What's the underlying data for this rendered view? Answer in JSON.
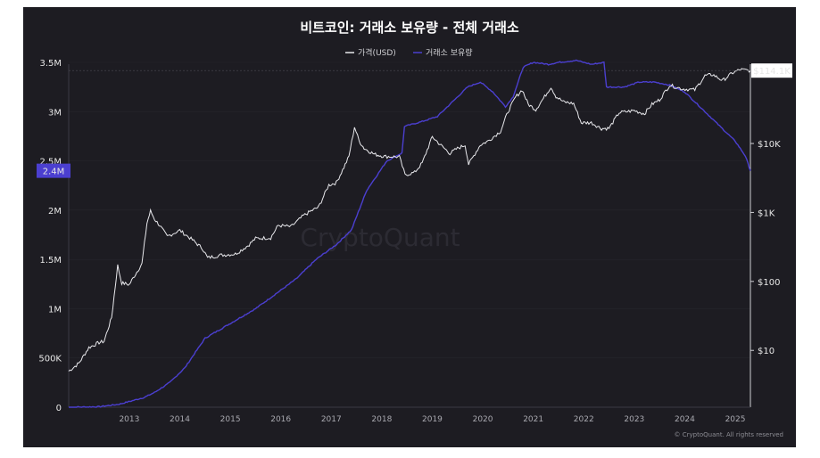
{
  "chart_data": {
    "type": "line",
    "title": "비트코인: 거래소 보유량 - 전체 거래소",
    "legend_position": "top-center",
    "watermark": "CryptoQuant",
    "copyright": "© CryptoQuant. All rights reserved",
    "x_ticks": [
      "2013",
      "2014",
      "2015",
      "2016",
      "2017",
      "2018",
      "2019",
      "2020",
      "2021",
      "2022",
      "2023",
      "2024",
      "2025"
    ],
    "x_range": [
      2012.3,
      2025.8
    ],
    "left_axis": {
      "ticks": [
        "0",
        "500K",
        "1M",
        "1.5M",
        "2M",
        "2.5M",
        "3M",
        "3.5M"
      ],
      "tick_values": [
        0,
        500000,
        1000000,
        1500000,
        2000000,
        2500000,
        3000000,
        3500000
      ],
      "range": [
        0,
        3500000
      ],
      "current_label": "2.4M",
      "current_value": 2400000
    },
    "right_axis": {
      "scale": "log",
      "ticks": [
        "$10",
        "$100",
        "$1K",
        "$10K"
      ],
      "tick_values": [
        10,
        100,
        1000,
        10000
      ],
      "range": [
        1.5,
        150000
      ],
      "current_label": "$114.1K",
      "current_value": 114100
    },
    "series": [
      {
        "name": "가격(USD)",
        "color": "#e8e8ec",
        "axis": "right",
        "points": [
          [
            2012.3,
            5
          ],
          [
            2012.5,
            6.5
          ],
          [
            2012.7,
            11
          ],
          [
            2012.9,
            13
          ],
          [
            2013.0,
            13.5
          ],
          [
            2013.15,
            30
          ],
          [
            2013.27,
            170
          ],
          [
            2013.35,
            95
          ],
          [
            2013.5,
            90
          ],
          [
            2013.6,
            120
          ],
          [
            2013.75,
            180
          ],
          [
            2013.85,
            700
          ],
          [
            2013.92,
            1050
          ],
          [
            2014.0,
            800
          ],
          [
            2014.1,
            650
          ],
          [
            2014.25,
            450
          ],
          [
            2014.5,
            550
          ],
          [
            2014.75,
            400
          ],
          [
            2014.95,
            300
          ],
          [
            2015.05,
            220
          ],
          [
            2015.3,
            240
          ],
          [
            2015.6,
            250
          ],
          [
            2015.85,
            330
          ],
          [
            2016.0,
            420
          ],
          [
            2016.3,
            430
          ],
          [
            2016.45,
            650
          ],
          [
            2016.7,
            620
          ],
          [
            2016.95,
            900
          ],
          [
            2017.1,
            1050
          ],
          [
            2017.25,
            1200
          ],
          [
            2017.45,
            2500
          ],
          [
            2017.6,
            2700
          ],
          [
            2017.75,
            4500
          ],
          [
            2017.85,
            6500
          ],
          [
            2017.96,
            17500
          ],
          [
            2018.05,
            11000
          ],
          [
            2018.15,
            8500
          ],
          [
            2018.35,
            7000
          ],
          [
            2018.55,
            6500
          ],
          [
            2018.85,
            6400
          ],
          [
            2018.96,
            3500
          ],
          [
            2019.15,
            3800
          ],
          [
            2019.3,
            5200
          ],
          [
            2019.5,
            12500
          ],
          [
            2019.7,
            9000
          ],
          [
            2019.85,
            7200
          ],
          [
            2020.0,
            8500
          ],
          [
            2020.15,
            9500
          ],
          [
            2020.22,
            5000
          ],
          [
            2020.45,
            9500
          ],
          [
            2020.6,
            10800
          ],
          [
            2020.85,
            15000
          ],
          [
            2021.0,
            29000
          ],
          [
            2021.15,
            47000
          ],
          [
            2021.28,
            60000
          ],
          [
            2021.4,
            37000
          ],
          [
            2021.55,
            31000
          ],
          [
            2021.7,
            45000
          ],
          [
            2021.85,
            66000
          ],
          [
            2021.95,
            48000
          ],
          [
            2022.1,
            40000
          ],
          [
            2022.3,
            38000
          ],
          [
            2022.45,
            20000
          ],
          [
            2022.65,
            20000
          ],
          [
            2022.85,
            16500
          ],
          [
            2023.0,
            16600
          ],
          [
            2023.2,
            28000
          ],
          [
            2023.5,
            30000
          ],
          [
            2023.7,
            27000
          ],
          [
            2023.85,
            37000
          ],
          [
            2024.0,
            43000
          ],
          [
            2024.2,
            70000
          ],
          [
            2024.45,
            62000
          ],
          [
            2024.7,
            60000
          ],
          [
            2024.9,
            96000
          ],
          [
            2025.05,
            100000
          ],
          [
            2025.25,
            82000
          ],
          [
            2025.45,
            106000
          ],
          [
            2025.6,
            118000
          ],
          [
            2025.8,
            114100
          ]
        ]
      },
      {
        "name": "거래소 보유량",
        "color": "#4b3fd0",
        "axis": "left",
        "points": [
          [
            2012.3,
            0
          ],
          [
            2012.9,
            5000
          ],
          [
            2013.3,
            30000
          ],
          [
            2013.8,
            100000
          ],
          [
            2014.0,
            150000
          ],
          [
            2014.3,
            250000
          ],
          [
            2014.6,
            400000
          ],
          [
            2015.0,
            700000
          ],
          [
            2015.5,
            850000
          ],
          [
            2016.0,
            1000000
          ],
          [
            2016.4,
            1150000
          ],
          [
            2016.8,
            1300000
          ],
          [
            2017.2,
            1500000
          ],
          [
            2017.6,
            1650000
          ],
          [
            2017.9,
            1800000
          ],
          [
            2018.2,
            2200000
          ],
          [
            2018.6,
            2500000
          ],
          [
            2018.9,
            2580000
          ],
          [
            2018.95,
            2850000
          ],
          [
            2019.3,
            2900000
          ],
          [
            2019.6,
            2950000
          ],
          [
            2019.9,
            3100000
          ],
          [
            2020.2,
            3250000
          ],
          [
            2020.45,
            3300000
          ],
          [
            2020.7,
            3200000
          ],
          [
            2020.95,
            3050000
          ],
          [
            2021.1,
            3150000
          ],
          [
            2021.3,
            3450000
          ],
          [
            2021.5,
            3500000
          ],
          [
            2021.8,
            3480000
          ],
          [
            2022.0,
            3500000
          ],
          [
            2022.35,
            3520000
          ],
          [
            2022.65,
            3480000
          ],
          [
            2022.9,
            3500000
          ],
          [
            2022.95,
            3250000
          ],
          [
            2023.3,
            3250000
          ],
          [
            2023.6,
            3300000
          ],
          [
            2023.9,
            3300000
          ],
          [
            2024.2,
            3270000
          ],
          [
            2024.5,
            3200000
          ],
          [
            2024.8,
            3050000
          ],
          [
            2025.0,
            2950000
          ],
          [
            2025.3,
            2800000
          ],
          [
            2025.5,
            2700000
          ],
          [
            2025.7,
            2550000
          ],
          [
            2025.8,
            2400000
          ]
        ]
      }
    ]
  }
}
